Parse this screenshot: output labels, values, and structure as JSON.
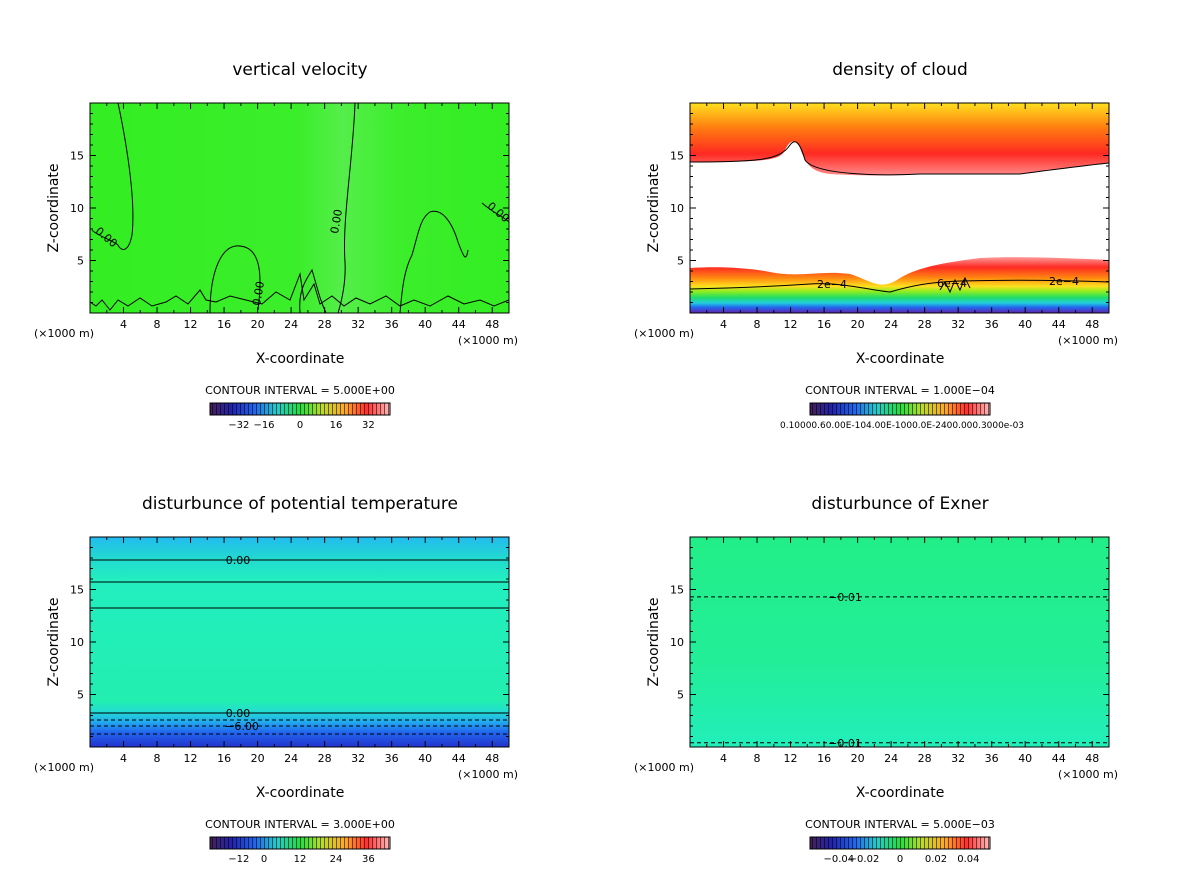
{
  "chart_data": [
    {
      "type": "heatmap",
      "title": "vertical velocity",
      "xlabel": "X-coordinate",
      "ylabel": "Z-coordinate",
      "x_unit_left": "(×1000 m)",
      "x_unit_right": "(×1000 m)",
      "xlim": [
        0,
        50
      ],
      "ylim": [
        0,
        20
      ],
      "xticks": [
        "4",
        "8",
        "12",
        "16",
        "20",
        "24",
        "28",
        "32",
        "36",
        "40",
        "44",
        "48"
      ],
      "yticks": [
        "5",
        "10",
        "15"
      ],
      "contour_labels": [
        "0.00",
        "0.00",
        "0.00",
        "0.00"
      ],
      "contour_interval": "CONTOUR INTERVAL = 5.000E+00",
      "colorbar_ticks": [
        "−32",
        "−16",
        "0",
        "16",
        "32"
      ],
      "field_color": "#33ee22"
    },
    {
      "type": "heatmap",
      "title": "density of cloud",
      "xlabel": "X-coordinate",
      "ylabel": "Z-coordinate",
      "x_unit_left": "(×1000 m)",
      "x_unit_right": "(×1000 m)",
      "xlim": [
        0,
        50
      ],
      "ylim": [
        0,
        20
      ],
      "xticks": [
        "4",
        "8",
        "12",
        "16",
        "20",
        "24",
        "28",
        "32",
        "36",
        "40",
        "44",
        "48"
      ],
      "yticks": [
        "5",
        "10",
        "15"
      ],
      "contour_labels": [
        "2e−4",
        "6e−4",
        "2e−4"
      ],
      "contour_interval": "CONTOUR INTERVAL = 1.000E−04",
      "colorbar_ticks_text": "0.10000.60.00E-104.00E-1000.0E-2400.000.3000e-03",
      "top_color": "#ff3030",
      "bottom_color": "#ffe020"
    },
    {
      "type": "heatmap",
      "title": "disturbunce of potential temperature",
      "xlabel": "X-coordinate",
      "ylabel": "Z-coordinate",
      "x_unit_left": "(×1000 m)",
      "x_unit_right": "(×1000 m)",
      "xlim": [
        0,
        50
      ],
      "ylim": [
        0,
        20
      ],
      "xticks": [
        "4",
        "8",
        "12",
        "16",
        "20",
        "24",
        "28",
        "32",
        "36",
        "40",
        "44",
        "48"
      ],
      "yticks": [
        "5",
        "10",
        "15"
      ],
      "contour_labels": [
        "0.00",
        "0.00",
        "−6.00"
      ],
      "contour_interval": "CONTOUR INTERVAL = 3.000E+00",
      "colorbar_ticks": [
        "−12",
        "0",
        "12",
        "24",
        "36"
      ]
    },
    {
      "type": "heatmap",
      "title": "disturbunce of Exner",
      "xlabel": "X-coordinate",
      "ylabel": "Z-coordinate",
      "x_unit_left": "(×1000 m)",
      "x_unit_right": "(×1000 m)",
      "xlim": [
        0,
        50
      ],
      "ylim": [
        0,
        20
      ],
      "xticks": [
        "4",
        "8",
        "12",
        "16",
        "20",
        "24",
        "28",
        "32",
        "36",
        "40",
        "44",
        "48"
      ],
      "yticks": [
        "5",
        "10",
        "15"
      ],
      "contour_labels": [
        "−0.01",
        "−0.01"
      ],
      "contour_levels": [
        14.3,
        0.4
      ],
      "contour_interval": "CONTOUR INTERVAL = 5.000E−03",
      "colorbar_ticks": [
        "−0.04",
        "−0.02",
        "0",
        "0.02",
        "0.04"
      ],
      "field_color": "#22ee88"
    }
  ]
}
